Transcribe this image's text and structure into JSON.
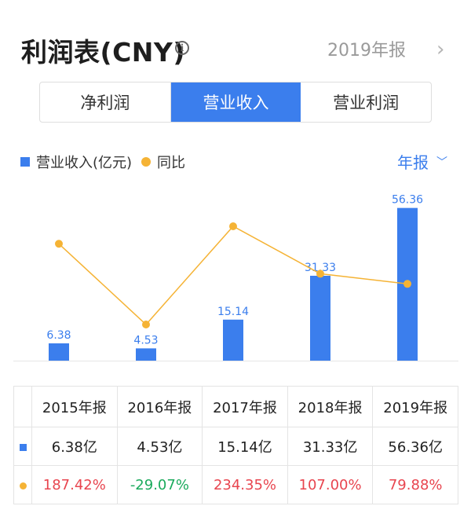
{
  "header": {
    "title": "利润表(CNY)",
    "period": "2019年报"
  },
  "tabs": [
    {
      "label": "净利润",
      "active": false
    },
    {
      "label": "营业收入",
      "active": true
    },
    {
      "label": "营业利润",
      "active": false
    }
  ],
  "legend": {
    "bar_label": "营业收入(亿元)",
    "line_label": "同比"
  },
  "period_select": {
    "label": "年报"
  },
  "colors": {
    "accent": "#3b7eed",
    "line": "#f5b335",
    "positive": "#e8454f",
    "negative": "#1aaa5c"
  },
  "chart_data": {
    "type": "bar",
    "categories": [
      "2015年报",
      "2016年报",
      "2017年报",
      "2018年报",
      "2019年报"
    ],
    "series": [
      {
        "name": "营业收入(亿元)",
        "type": "bar",
        "values": [
          6.38,
          4.53,
          15.14,
          31.33,
          56.36
        ],
        "labels": [
          "6.38",
          "4.53",
          "15.14",
          "31.33",
          "56.36"
        ]
      },
      {
        "name": "同比",
        "type": "line",
        "values": [
          187.42,
          -29.07,
          234.35,
          107.0,
          79.88
        ]
      }
    ]
  },
  "table": {
    "headers": [
      "2015年报",
      "2016年报",
      "2017年报",
      "2018年报",
      "2019年报"
    ],
    "revenue_row": [
      "6.38亿",
      "4.53亿",
      "15.14亿",
      "31.33亿",
      "56.36亿"
    ],
    "yoy_row": [
      "187.42%",
      "-29.07%",
      "234.35%",
      "107.00%",
      "79.88%"
    ]
  }
}
